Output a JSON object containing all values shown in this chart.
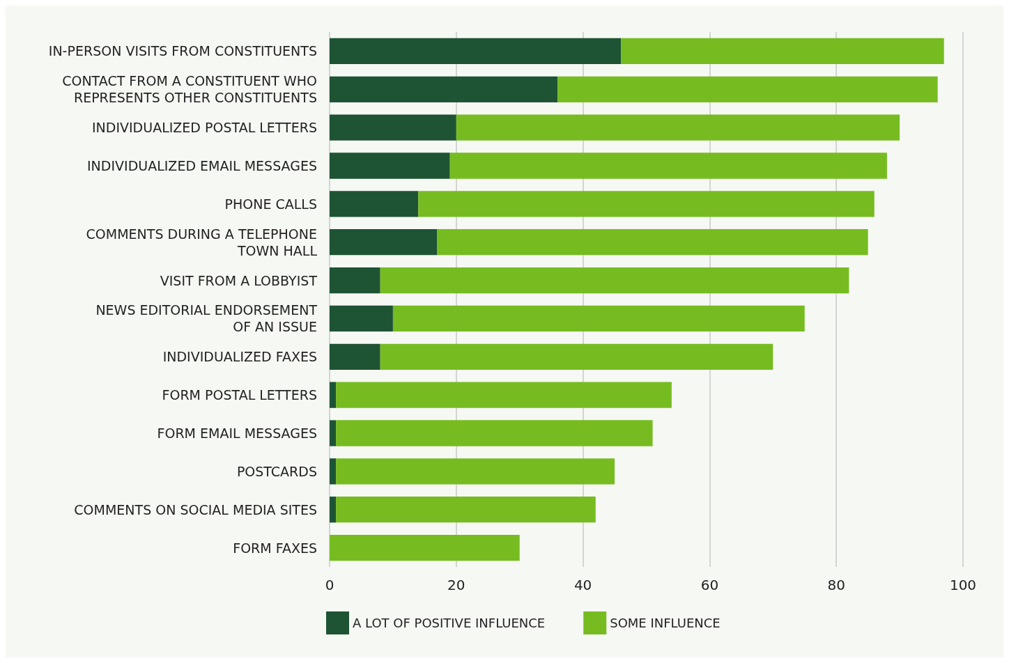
{
  "chart_data": {
    "type": "bar",
    "orientation": "horizontal",
    "stacked": true,
    "categories": [
      "IN-PERSON VISITS FROM CONSTITUENTS",
      "CONTACT FROM A CONSTITUENT WHO\nREPRESENTS OTHER CONSTITUENTS",
      "INDIVIDUALIZED POSTAL LETTERS",
      "INDIVIDUALIZED EMAIL MESSAGES",
      "PHONE CALLS",
      "COMMENTS DURING A TELEPHONE\nTOWN HALL",
      "VISIT FROM A LOBBYIST",
      "NEWS EDITORIAL ENDORSEMENT\nOF AN ISSUE",
      "INDIVIDUALIZED FAXES",
      "FORM POSTAL LETTERS",
      "FORM EMAIL MESSAGES",
      "POSTCARDS",
      "COMMENTS ON SOCIAL MEDIA SITES",
      "FORM FAXES"
    ],
    "series": [
      {
        "name": "A LOT OF POSITIVE INFLUENCE",
        "color": "#1e5434",
        "values": [
          46,
          36,
          20,
          19,
          14,
          17,
          8,
          10,
          8,
          1,
          1,
          1,
          1,
          0
        ]
      },
      {
        "name": "SOME INFLUENCE",
        "color": "#76bc21",
        "values": [
          51,
          60,
          70,
          69,
          72,
          68,
          74,
          65,
          62,
          53,
          50,
          44,
          41,
          30
        ]
      }
    ],
    "xlim": [
      0,
      100
    ],
    "xticks": [
      0,
      20,
      40,
      60,
      80,
      100
    ],
    "grid": "x",
    "legend": "bottom"
  }
}
